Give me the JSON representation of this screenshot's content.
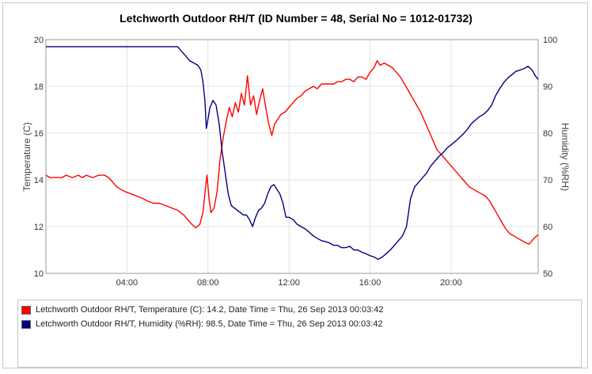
{
  "chart_data": {
    "type": "line",
    "title": "Letchworth Outdoor RH/T (ID Number = 48, Serial No = 1012-01732)",
    "ylabel": "Temperature (C)",
    "y2label": "Humidity (%RH)",
    "ylim": [
      10,
      20
    ],
    "y2lim": [
      50,
      100
    ],
    "xlim_hours": [
      0,
      24.3
    ],
    "x_ticks": [
      {
        "h": 4,
        "label": "04:00"
      },
      {
        "h": 8,
        "label": "08:00"
      },
      {
        "h": 12,
        "label": "12:00"
      },
      {
        "h": 16,
        "label": "16:00"
      },
      {
        "h": 20,
        "label": "20:00"
      }
    ],
    "y_ticks": [
      "10",
      "12",
      "14",
      "16",
      "18",
      "20"
    ],
    "y2_ticks": [
      "50",
      "60",
      "70",
      "80",
      "90",
      "100"
    ],
    "grid": true,
    "series": [
      {
        "name": "Letchworth Outdoor RH/T, Temperature (C)",
        "axis": "left",
        "color": "#ff0000",
        "points": [
          [
            0,
            14.2
          ],
          [
            0.2,
            14.1
          ],
          [
            0.5,
            14.1
          ],
          [
            0.8,
            14.1
          ],
          [
            1.0,
            14.2
          ],
          [
            1.3,
            14.1
          ],
          [
            1.6,
            14.2
          ],
          [
            1.8,
            14.1
          ],
          [
            2.0,
            14.2
          ],
          [
            2.3,
            14.1
          ],
          [
            2.6,
            14.2
          ],
          [
            2.9,
            14.2
          ],
          [
            3.1,
            14.1
          ],
          [
            3.3,
            13.9
          ],
          [
            3.5,
            13.7
          ],
          [
            3.7,
            13.6
          ],
          [
            3.9,
            13.5
          ],
          [
            4.2,
            13.4
          ],
          [
            4.5,
            13.3
          ],
          [
            4.8,
            13.2
          ],
          [
            5.0,
            13.1
          ],
          [
            5.3,
            13.0
          ],
          [
            5.6,
            13.0
          ],
          [
            5.9,
            12.9
          ],
          [
            6.2,
            12.8
          ],
          [
            6.5,
            12.7
          ],
          [
            6.8,
            12.5
          ],
          [
            7.0,
            12.3
          ],
          [
            7.2,
            12.1
          ],
          [
            7.4,
            11.95
          ],
          [
            7.6,
            12.1
          ],
          [
            7.75,
            12.6
          ],
          [
            7.85,
            13.4
          ],
          [
            7.95,
            14.2
          ],
          [
            8.05,
            13.2
          ],
          [
            8.15,
            12.6
          ],
          [
            8.3,
            12.8
          ],
          [
            8.45,
            13.5
          ],
          [
            8.6,
            14.9
          ],
          [
            8.75,
            15.8
          ],
          [
            8.9,
            16.5
          ],
          [
            9.05,
            17.1
          ],
          [
            9.2,
            16.7
          ],
          [
            9.35,
            17.3
          ],
          [
            9.5,
            16.9
          ],
          [
            9.65,
            17.7
          ],
          [
            9.8,
            17.2
          ],
          [
            9.95,
            18.45
          ],
          [
            10.1,
            17.2
          ],
          [
            10.25,
            17.6
          ],
          [
            10.4,
            16.8
          ],
          [
            10.55,
            17.4
          ],
          [
            10.7,
            17.9
          ],
          [
            10.85,
            17.1
          ],
          [
            11.0,
            16.4
          ],
          [
            11.15,
            15.9
          ],
          [
            11.3,
            16.4
          ],
          [
            11.45,
            16.6
          ],
          [
            11.6,
            16.8
          ],
          [
            11.8,
            16.9
          ],
          [
            12.0,
            17.1
          ],
          [
            12.2,
            17.3
          ],
          [
            12.4,
            17.5
          ],
          [
            12.6,
            17.6
          ],
          [
            12.8,
            17.8
          ],
          [
            13.0,
            17.9
          ],
          [
            13.2,
            18.0
          ],
          [
            13.4,
            17.9
          ],
          [
            13.6,
            18.1
          ],
          [
            13.8,
            18.1
          ],
          [
            14.0,
            18.1
          ],
          [
            14.2,
            18.1
          ],
          [
            14.4,
            18.2
          ],
          [
            14.6,
            18.2
          ],
          [
            14.8,
            18.3
          ],
          [
            15.0,
            18.3
          ],
          [
            15.2,
            18.2
          ],
          [
            15.4,
            18.4
          ],
          [
            15.6,
            18.4
          ],
          [
            15.8,
            18.3
          ],
          [
            16.0,
            18.6
          ],
          [
            16.2,
            18.8
          ],
          [
            16.35,
            19.1
          ],
          [
            16.5,
            18.9
          ],
          [
            16.7,
            19.0
          ],
          [
            16.9,
            18.9
          ],
          [
            17.1,
            18.8
          ],
          [
            17.3,
            18.6
          ],
          [
            17.5,
            18.4
          ],
          [
            17.7,
            18.1
          ],
          [
            17.9,
            17.8
          ],
          [
            18.1,
            17.5
          ],
          [
            18.3,
            17.2
          ],
          [
            18.5,
            16.9
          ],
          [
            18.7,
            16.5
          ],
          [
            18.9,
            16.1
          ],
          [
            19.1,
            15.7
          ],
          [
            19.3,
            15.3
          ],
          [
            19.5,
            15.1
          ],
          [
            19.7,
            14.9
          ],
          [
            19.9,
            14.7
          ],
          [
            20.1,
            14.5
          ],
          [
            20.3,
            14.3
          ],
          [
            20.5,
            14.1
          ],
          [
            20.7,
            13.9
          ],
          [
            20.9,
            13.7
          ],
          [
            21.1,
            13.6
          ],
          [
            21.3,
            13.5
          ],
          [
            21.5,
            13.4
          ],
          [
            21.7,
            13.3
          ],
          [
            21.9,
            13.1
          ],
          [
            22.1,
            12.8
          ],
          [
            22.3,
            12.5
          ],
          [
            22.5,
            12.2
          ],
          [
            22.7,
            11.9
          ],
          [
            22.9,
            11.7
          ],
          [
            23.1,
            11.6
          ],
          [
            23.3,
            11.5
          ],
          [
            23.5,
            11.4
          ],
          [
            23.7,
            11.3
          ],
          [
            23.85,
            11.25
          ],
          [
            24.0,
            11.4
          ],
          [
            24.15,
            11.55
          ],
          [
            24.3,
            11.65
          ]
        ]
      },
      {
        "name": "Letchworth Outdoor RH/T, Humidity (%RH)",
        "axis": "right",
        "color": "#000080",
        "points": [
          [
            0,
            98.5
          ],
          [
            1.0,
            98.5
          ],
          [
            2.0,
            98.5
          ],
          [
            3.0,
            98.5
          ],
          [
            4.0,
            98.5
          ],
          [
            5.0,
            98.5
          ],
          [
            6.0,
            98.5
          ],
          [
            6.5,
            98.5
          ],
          [
            6.7,
            97.5
          ],
          [
            6.9,
            96.5
          ],
          [
            7.1,
            95.5
          ],
          [
            7.3,
            95.0
          ],
          [
            7.5,
            94.5
          ],
          [
            7.65,
            93.5
          ],
          [
            7.75,
            91.0
          ],
          [
            7.85,
            87.0
          ],
          [
            7.92,
            81.0
          ],
          [
            8.0,
            83.0
          ],
          [
            8.1,
            85.5
          ],
          [
            8.25,
            87.0
          ],
          [
            8.4,
            86.0
          ],
          [
            8.55,
            82.0
          ],
          [
            8.7,
            76.0
          ],
          [
            8.8,
            73.0
          ],
          [
            8.9,
            70.0
          ],
          [
            9.0,
            67.0
          ],
          [
            9.15,
            64.5
          ],
          [
            9.3,
            64.0
          ],
          [
            9.45,
            63.5
          ],
          [
            9.6,
            63.0
          ],
          [
            9.75,
            62.5
          ],
          [
            9.9,
            62.5
          ],
          [
            10.05,
            61.5
          ],
          [
            10.2,
            60.0
          ],
          [
            10.35,
            62.0
          ],
          [
            10.5,
            63.5
          ],
          [
            10.65,
            64.0
          ],
          [
            10.8,
            65.0
          ],
          [
            10.95,
            67.0
          ],
          [
            11.1,
            68.5
          ],
          [
            11.25,
            69.0
          ],
          [
            11.4,
            68.0
          ],
          [
            11.55,
            67.0
          ],
          [
            11.7,
            65.0
          ],
          [
            11.85,
            62.0
          ],
          [
            12.0,
            62.0
          ],
          [
            12.2,
            61.5
          ],
          [
            12.4,
            60.5
          ],
          [
            12.6,
            60.0
          ],
          [
            12.8,
            59.5
          ],
          [
            13.0,
            58.8
          ],
          [
            13.2,
            58.0
          ],
          [
            13.4,
            57.5
          ],
          [
            13.6,
            57.0
          ],
          [
            13.8,
            56.8
          ],
          [
            14.0,
            56.5
          ],
          [
            14.2,
            56.0
          ],
          [
            14.4,
            56.0
          ],
          [
            14.6,
            55.5
          ],
          [
            14.8,
            55.5
          ],
          [
            15.0,
            55.8
          ],
          [
            15.2,
            55.0
          ],
          [
            15.4,
            55.0
          ],
          [
            15.6,
            54.5
          ],
          [
            15.8,
            54.2
          ],
          [
            16.0,
            53.8
          ],
          [
            16.2,
            53.5
          ],
          [
            16.4,
            53.0
          ],
          [
            16.6,
            53.5
          ],
          [
            16.8,
            54.2
          ],
          [
            17.0,
            55.0
          ],
          [
            17.2,
            56.0
          ],
          [
            17.4,
            57.0
          ],
          [
            17.6,
            58.0
          ],
          [
            17.8,
            60.0
          ],
          [
            17.9,
            63.0
          ],
          [
            18.0,
            66.0
          ],
          [
            18.2,
            68.5
          ],
          [
            18.4,
            69.5
          ],
          [
            18.6,
            70.5
          ],
          [
            18.8,
            71.5
          ],
          [
            19.0,
            73.0
          ],
          [
            19.2,
            74.0
          ],
          [
            19.4,
            75.0
          ],
          [
            19.6,
            75.8
          ],
          [
            19.8,
            76.8
          ],
          [
            20.0,
            77.5
          ],
          [
            20.2,
            78.2
          ],
          [
            20.4,
            79.0
          ],
          [
            20.6,
            79.8
          ],
          [
            20.8,
            80.8
          ],
          [
            21.0,
            82.0
          ],
          [
            21.2,
            82.8
          ],
          [
            21.4,
            83.5
          ],
          [
            21.6,
            84.0
          ],
          [
            21.8,
            84.8
          ],
          [
            22.0,
            86.0
          ],
          [
            22.2,
            88.0
          ],
          [
            22.4,
            89.5
          ],
          [
            22.6,
            90.8
          ],
          [
            22.8,
            91.8
          ],
          [
            23.0,
            92.5
          ],
          [
            23.2,
            93.2
          ],
          [
            23.4,
            93.5
          ],
          [
            23.6,
            93.8
          ],
          [
            23.8,
            94.3
          ],
          [
            24.0,
            93.5
          ],
          [
            24.15,
            92.3
          ],
          [
            24.3,
            91.5
          ]
        ]
      }
    ]
  },
  "legend": [
    {
      "text": "Letchworth Outdoor RH/T, Temperature (C): 14.2, Date Time = Thu, 26 Sep 2013 00:03:42",
      "color": "#ff0000"
    },
    {
      "text": "Letchworth Outdoor RH/T, Humidity (%RH): 98.5, Date Time = Thu, 26 Sep 2013 00:03:42",
      "color": "#000080"
    }
  ]
}
